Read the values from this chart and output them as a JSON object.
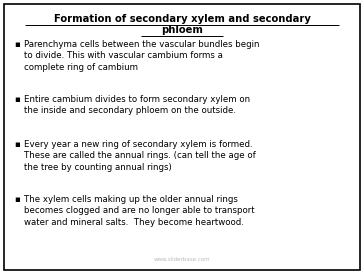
{
  "title_line1": "Formation of secondary xylem and secondary",
  "title_line2": "phloem",
  "bg_color": "#ffffff",
  "border_color": "#000000",
  "title_color": "#000000",
  "text_color": "#000000",
  "bullet_points": [
    "Parenchyma cells between the vascular bundles begin\nto divide. This with vascular cambium forms a\ncomplete ring of cambium",
    "Entire cambium divides to form secondary xylem on\nthe inside and secondary phloem on the outside.",
    "Every year a new ring of secondary xylem is formed.\nThese are called the annual rings. (can tell the age of\nthe tree by counting annual rings)",
    "The xylem cells making up the older annual rings\nbecomes clogged and are no longer able to transport\nwater and mineral salts.  They become heartwood."
  ],
  "watermark": "www.sliderbase.com",
  "title_fontsize": 7.2,
  "bullet_fontsize": 6.2,
  "watermark_fontsize": 4.0,
  "bullet_char": "▪"
}
